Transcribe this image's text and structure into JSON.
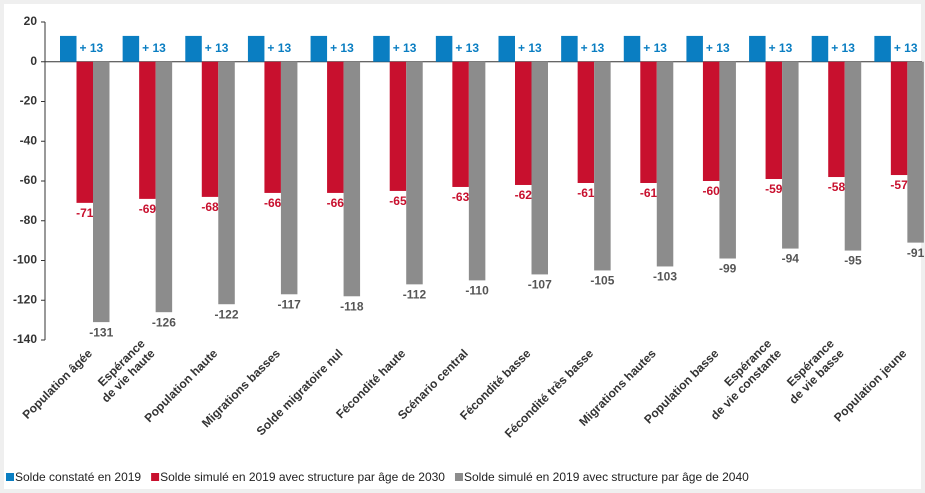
{
  "chart_data": {
    "type": "bar",
    "categories": [
      "Population âgée",
      "Espérance\nde vie haute",
      "Population haute",
      "Migrations basses",
      "Solde migratoire nul",
      "Fécondité haute",
      "Scénario central",
      "Fécondité basse",
      "Fécondité très basse",
      "Migrations hautes",
      "Population basse",
      "Espérance\nde vie constante",
      "Espérance\nde vie basse",
      "Population jeune"
    ],
    "series": [
      {
        "name": "Solde constaté en 2019",
        "color": "#0a7ec2",
        "values": [
          13,
          13,
          13,
          13,
          13,
          13,
          13,
          13,
          13,
          13,
          13,
          13,
          13,
          13
        ],
        "value_labels": [
          "+ 13",
          "+ 13",
          "+ 13",
          "+ 13",
          "+ 13",
          "+ 13",
          "+ 13",
          "+ 13",
          "+ 13",
          "+ 13",
          "+ 13",
          "+ 13",
          "+ 13",
          "+ 13"
        ]
      },
      {
        "name": "Solde simulé en 2019 avec structure par âge de 2030",
        "color": "#c8102e",
        "values": [
          -71,
          -69,
          -68,
          -66,
          -66,
          -65,
          -63,
          -62,
          -61,
          -61,
          -60,
          -59,
          -58,
          -57
        ]
      },
      {
        "name": "Solde simulé en 2019 avec structure par âge de 2040",
        "color": "#8c8c8c",
        "values": [
          -131,
          -126,
          -122,
          -117,
          -118,
          -112,
          -110,
          -107,
          -105,
          -103,
          -99,
          -94,
          -95,
          -91
        ]
      }
    ],
    "ylim": [
      -140,
      20
    ],
    "yticks": [
      -140,
      -120,
      -100,
      -80,
      -60,
      -40,
      -20,
      0,
      20
    ],
    "grid": false
  }
}
